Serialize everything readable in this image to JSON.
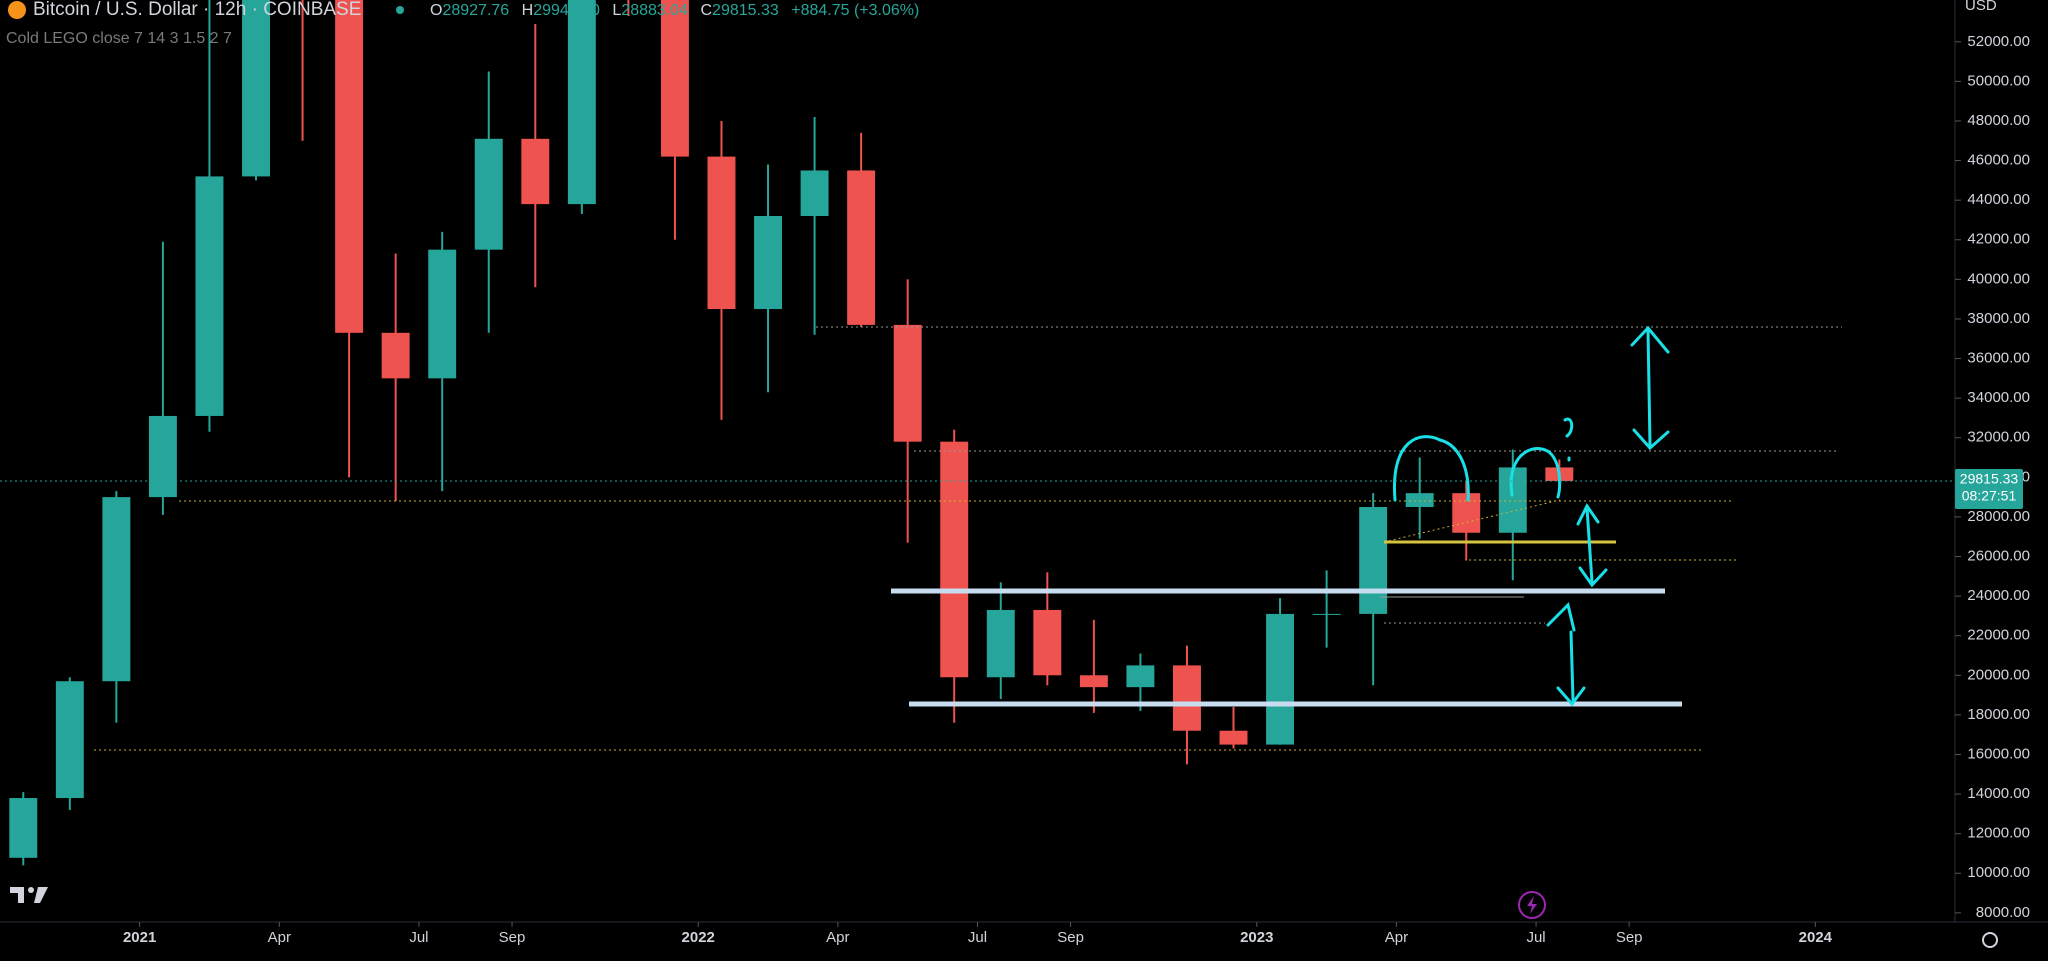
{
  "header": {
    "symbol": "Bitcoin / U.S. Dollar · 12h · COINBASE",
    "indicator": "Cold LEGO close 7 14 3 1.5 2 7",
    "open_label": "O",
    "open": "28927.76",
    "high_label": "H",
    "high": "29949.00",
    "low_label": "L",
    "low": "28883.04",
    "close_label": "C",
    "close": "29815.33",
    "change": "+884.75 (+3.06%)",
    "currency": "USD"
  },
  "chart_data": {
    "type": "candlestick",
    "x": [
      "2020-10",
      "2020-11",
      "2020-12",
      "2021-01",
      "2021-02",
      "2021-03",
      "2021-04",
      "2021-05",
      "2021-06",
      "2021-07",
      "2021-08",
      "2021-09",
      "2021-10",
      "2021-11",
      "2021-12",
      "2022-01",
      "2022-02",
      "2022-03",
      "2022-04",
      "2022-05",
      "2022-06",
      "2022-07",
      "2022-08",
      "2022-09",
      "2022-10",
      "2022-11",
      "2022-12",
      "2023-01",
      "2023-02",
      "2023-03",
      "2023-04",
      "2023-05",
      "2023-06",
      "2023-07"
    ],
    "open": [
      10780,
      13800,
      19700,
      29000,
      33100,
      45200,
      58800,
      57700,
      37300,
      35000,
      41500,
      47100,
      43800,
      61300,
      57000,
      46200,
      38500,
      43200,
      45500,
      37700,
      31800,
      19900,
      23300,
      20000,
      19400,
      20500,
      17200,
      16500,
      23100,
      23100,
      28500,
      29200,
      27200,
      30500
    ],
    "high": [
      14100,
      19900,
      29300,
      41900,
      58300,
      61700,
      64800,
      59500,
      41300,
      42400,
      50500,
      52900,
      67000,
      69000,
      59100,
      48000,
      45800,
      48200,
      47400,
      40000,
      32400,
      24700,
      25200,
      22800,
      21100,
      21500,
      18400,
      23900,
      25300,
      29200,
      31000,
      29800,
      31400,
      30900
    ],
    "low": [
      10400,
      13200,
      17600,
      28100,
      32300,
      45000,
      47000,
      30000,
      28800,
      29300,
      37300,
      39600,
      43300,
      53300,
      42000,
      32900,
      34300,
      37200,
      37600,
      26700,
      17600,
      18800,
      19500,
      18100,
      18200,
      15500,
      16300,
      16500,
      21400,
      19500,
      26900,
      25800,
      24800,
      29500
    ],
    "close": [
      13800,
      19700,
      29000,
      33100,
      45200,
      58800,
      57700,
      37300,
      35000,
      41500,
      47100,
      43800,
      61300,
      57000,
      46200,
      38500,
      43200,
      45500,
      37700,
      31800,
      19900,
      23300,
      20000,
      19400,
      20500,
      17200,
      16500,
      23100,
      23100,
      28500,
      29200,
      27200,
      30500,
      29815.33
    ],
    "up_color": "#26a69a",
    "down_color": "#ef5350",
    "last_price": 29815.33,
    "countdown": "08:27:51",
    "xlim": [
      "2020-10",
      "2024-04"
    ],
    "xticks": [
      {
        "value": "2021-01",
        "label": "2021"
      },
      {
        "value": "2021-04",
        "label": "Apr"
      },
      {
        "value": "2021-07",
        "label": "Jul"
      },
      {
        "value": "2021-09",
        "label": "Sep"
      },
      {
        "value": "2022-01",
        "label": "2022"
      },
      {
        "value": "2022-04",
        "label": "Apr"
      },
      {
        "value": "2022-07",
        "label": "Jul"
      },
      {
        "value": "2022-09",
        "label": "Sep"
      },
      {
        "value": "2023-01",
        "label": "2023"
      },
      {
        "value": "2023-04",
        "label": "Apr"
      },
      {
        "value": "2023-07",
        "label": "Jul"
      },
      {
        "value": "2023-09",
        "label": "Sep"
      },
      {
        "value": "2024-01",
        "label": "2024"
      }
    ],
    "ylim": [
      7538,
      54111
    ],
    "yticks": [
      {
        "value": 8000,
        "label": "8000.00"
      },
      {
        "value": 10000,
        "label": "10000.00"
      },
      {
        "value": 12000,
        "label": "12000.00"
      },
      {
        "value": 14000,
        "label": "14000.00"
      },
      {
        "value": 16000,
        "label": "16000.00"
      },
      {
        "value": 18000,
        "label": "18000.00"
      },
      {
        "value": 20000,
        "label": "20000.00"
      },
      {
        "value": 22000,
        "label": "22000.00"
      },
      {
        "value": 24000,
        "label": "24000.00"
      },
      {
        "value": 26000,
        "label": "26000.00"
      },
      {
        "value": 28000,
        "label": "28000.00"
      },
      {
        "value": 30000,
        "label": "30000.00"
      },
      {
        "value": 32000,
        "label": "32000.00"
      },
      {
        "value": 34000,
        "label": "34000.00"
      },
      {
        "value": 36000,
        "label": "36000.00"
      },
      {
        "value": 38000,
        "label": "38000.00"
      },
      {
        "value": 40000,
        "label": "40000.00"
      },
      {
        "value": 42000,
        "label": "42000.00"
      },
      {
        "value": 44000,
        "label": "44000.00"
      },
      {
        "value": 46000,
        "label": "46000.00"
      },
      {
        "value": 48000,
        "label": "48000.00"
      },
      {
        "value": 50000,
        "label": "50000.00"
      },
      {
        "value": 52000,
        "label": "52000.00"
      }
    ],
    "grid": false
  }
}
